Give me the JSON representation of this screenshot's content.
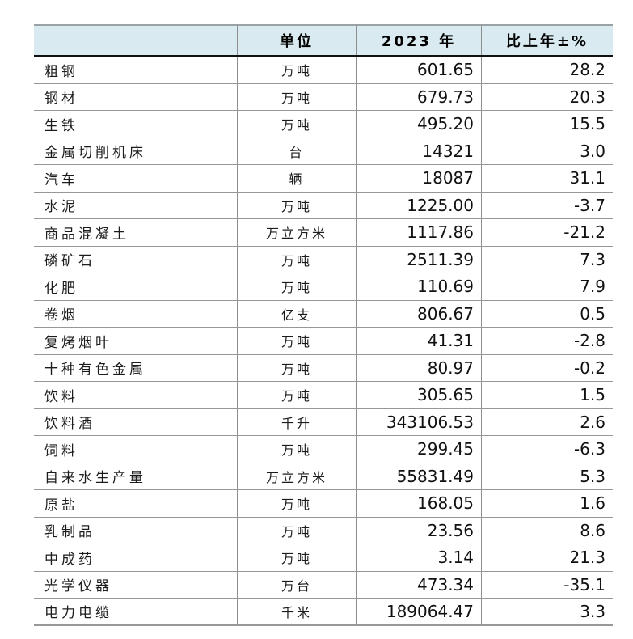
{
  "page": {
    "background": "#ffffff"
  },
  "table": {
    "title_semantic": "industrial-output-products-2023",
    "style": {
      "header_bg": "#d9ebf1",
      "grid_line": "#979797",
      "header_top_rule": "#9aa2a6",
      "header_bottom_rule": "#121212",
      "text_color": "#1c1c1c"
    },
    "columns": [
      "",
      "单位",
      "2023 年",
      "比上年±%"
    ],
    "rows": [
      {
        "name": "粗钢",
        "unit": "万吨",
        "value": "601.65",
        "change": "28.2"
      },
      {
        "name": "钢材",
        "unit": "万吨",
        "value": "679.73",
        "change": "20.3"
      },
      {
        "name": "生铁",
        "unit": "万吨",
        "value": "495.20",
        "change": "15.5"
      },
      {
        "name": "金属切削机床",
        "unit": "台",
        "value": "14321",
        "change": "3.0"
      },
      {
        "name": "汽车",
        "unit": "辆",
        "value": "18087",
        "change": "31.1"
      },
      {
        "name": "水泥",
        "unit": "万吨",
        "value": "1225.00",
        "change": "-3.7"
      },
      {
        "name": "商品混凝土",
        "unit": "万立方米",
        "value": "1117.86",
        "change": "-21.2"
      },
      {
        "name": "磷矿石",
        "unit": "万吨",
        "value": "2511.39",
        "change": "7.3"
      },
      {
        "name": "化肥",
        "unit": "万吨",
        "value": "110.69",
        "change": "7.9"
      },
      {
        "name": "卷烟",
        "unit": "亿支",
        "value": "806.67",
        "change": "0.5"
      },
      {
        "name": "复烤烟叶",
        "unit": "万吨",
        "value": "41.31",
        "change": "-2.8"
      },
      {
        "name": "十种有色金属",
        "unit": "万吨",
        "value": "80.97",
        "change": "-0.2"
      },
      {
        "name": "饮料",
        "unit": "万吨",
        "value": "305.65",
        "change": "1.5"
      },
      {
        "name": "饮料酒",
        "unit": "千升",
        "value": "343106.53",
        "change": "2.6"
      },
      {
        "name": "饲料",
        "unit": "万吨",
        "value": "299.45",
        "change": "-6.3"
      },
      {
        "name": "自来水生产量",
        "unit": "万立方米",
        "value": "55831.49",
        "change": "5.3"
      },
      {
        "name": "原盐",
        "unit": "万吨",
        "value": "168.05",
        "change": "1.6"
      },
      {
        "name": "乳制品",
        "unit": "万吨",
        "value": "23.56",
        "change": "8.6"
      },
      {
        "name": "中成药",
        "unit": "万吨",
        "value": "3.14",
        "change": "21.3"
      },
      {
        "name": "光学仪器",
        "unit": "万台",
        "value": "473.34",
        "change": "-35.1"
      },
      {
        "name": "电力电缆",
        "unit": "千米",
        "value": "189064.47",
        "change": "3.3"
      }
    ]
  }
}
